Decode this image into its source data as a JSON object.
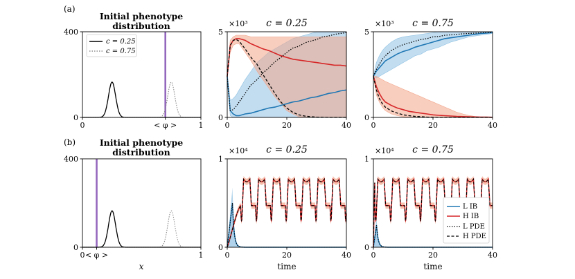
{
  "colors": {
    "L": "#1f77b4",
    "H": "#d62728",
    "L_band": "#8fc1e3",
    "H_band": "#f2a58a",
    "mean_line": "#9467bd"
  },
  "rows": [
    {
      "label": "(a)"
    },
    {
      "label": "(b)"
    }
  ],
  "chart_data": [
    {
      "id": "a1",
      "type": "line",
      "title_line1": "Initial phenotype",
      "title_line2": "distribution",
      "xlim": [
        0,
        1
      ],
      "ylim": [
        0,
        400
      ],
      "xticks": [
        {
          "v": 0,
          "t": "0"
        },
        {
          "v": 0.7,
          "t": "< φ >"
        },
        {
          "v": 1,
          "t": "1"
        }
      ],
      "yticks": [
        {
          "v": 0,
          "t": "0"
        },
        {
          "v": 400,
          "t": "400"
        }
      ],
      "mean_marker_x": 0.7,
      "series": [
        {
          "name": "c = 0.25",
          "style": "solid",
          "mu": 0.25,
          "sigma": 0.03,
          "peak": 165
        },
        {
          "name": "c = 0.75",
          "style": "dotted",
          "mu": 0.75,
          "sigma": 0.03,
          "peak": 165
        }
      ],
      "legend": [
        {
          "label": "c = 0.25",
          "style": "solid"
        },
        {
          "label": "c = 0.75",
          "style": "dotted"
        }
      ]
    },
    {
      "id": "a2",
      "type": "line",
      "title": "c = 0.25",
      "exponent": "×10³",
      "xlim": [
        0,
        40
      ],
      "ylim": [
        0,
        5
      ],
      "xticks": [
        {
          "v": 0,
          "t": "0"
        },
        {
          "v": 20,
          "t": "20"
        },
        {
          "v": 40,
          "t": "40"
        }
      ],
      "yticks": [
        {
          "v": 0,
          "t": "0"
        },
        {
          "v": 5,
          "t": "5"
        }
      ],
      "x": [
        0,
        1,
        2,
        3,
        4,
        6,
        8,
        10,
        12,
        14,
        16,
        18,
        20,
        22,
        24,
        26,
        28,
        30,
        32,
        34,
        36,
        38,
        40
      ],
      "series": [
        {
          "name": "L IB",
          "values": [
            2.4,
            0.4,
            0.2,
            0.1,
            0.1,
            0.2,
            0.25,
            0.35,
            0.45,
            0.55,
            0.6,
            0.7,
            0.8,
            0.9,
            0.95,
            1.05,
            1.15,
            1.2,
            1.3,
            1.4,
            1.45,
            1.55,
            1.6
          ],
          "band_lo": [
            2.4,
            0.1,
            0.0,
            0.0,
            0.0,
            0.0,
            0.0,
            0.0,
            0.0,
            0.0,
            0.0,
            0.0,
            0.0,
            0.0,
            0.0,
            0.0,
            0.0,
            0.0,
            0.0,
            0.0,
            0.0,
            0.0,
            0.0
          ],
          "band_hi": [
            2.4,
            1.0,
            1.1,
            1.3,
            1.6,
            2.2,
            2.7,
            3.2,
            3.5,
            3.8,
            4.0,
            4.2,
            4.4,
            4.6,
            4.7,
            4.8,
            4.9,
            5.0,
            5.0,
            5.0,
            5.0,
            5.0,
            5.0
          ]
        },
        {
          "name": "H IB",
          "values": [
            2.4,
            4.2,
            4.5,
            4.6,
            4.6,
            4.5,
            4.3,
            4.15,
            4.0,
            3.9,
            3.75,
            3.6,
            3.5,
            3.4,
            3.35,
            3.3,
            3.25,
            3.2,
            3.15,
            3.1,
            3.05,
            3.05,
            3.0
          ],
          "band_lo": [
            2.4,
            3.8,
            4.2,
            4.3,
            4.3,
            3.8,
            3.3,
            2.7,
            2.2,
            1.7,
            1.2,
            0.8,
            0.4,
            0.2,
            0.05,
            0.0,
            0.0,
            0.0,
            0.0,
            0.0,
            0.0,
            0.0,
            0.0
          ],
          "band_hi": [
            2.4,
            4.5,
            4.7,
            4.8,
            4.8,
            4.8,
            4.7,
            4.7,
            4.7,
            4.7,
            4.7,
            4.7,
            4.7,
            4.7,
            4.7,
            4.7,
            4.7,
            4.7,
            4.7,
            4.7,
            4.7,
            4.7,
            4.7
          ]
        },
        {
          "name": "L PDE",
          "values": [
            2.4,
            0.4,
            0.45,
            0.65,
            0.9,
            1.4,
            1.9,
            2.2,
            2.6,
            2.9,
            3.25,
            3.5,
            3.8,
            4.05,
            4.15,
            4.35,
            4.45,
            4.55,
            4.7,
            4.75,
            4.85,
            4.9,
            4.95
          ]
        },
        {
          "name": "H PDE",
          "values": [
            2.4,
            4.2,
            4.5,
            4.55,
            4.45,
            4.0,
            3.5,
            3.1,
            2.5,
            1.95,
            1.4,
            0.9,
            0.55,
            0.3,
            0.15,
            0.08,
            0.04,
            0.02,
            0.01,
            0.0,
            0.0,
            0.0,
            0.0
          ]
        }
      ]
    },
    {
      "id": "a3",
      "type": "line",
      "title": "c = 0.75",
      "exponent": "×10³",
      "xlim": [
        0,
        40
      ],
      "ylim": [
        0,
        5
      ],
      "xticks": [
        {
          "v": 0,
          "t": "0"
        },
        {
          "v": 20,
          "t": "20"
        },
        {
          "v": 40,
          "t": "40"
        }
      ],
      "yticks": [
        {
          "v": 0,
          "t": "0"
        },
        {
          "v": 5,
          "t": "5"
        }
      ],
      "x": [
        0,
        1,
        2,
        3,
        4,
        6,
        8,
        10,
        12,
        14,
        16,
        18,
        20,
        22,
        24,
        26,
        28,
        30,
        32,
        34,
        36,
        38,
        40
      ],
      "series": [
        {
          "name": "L IB",
          "values": [
            2.4,
            2.7,
            2.9,
            3.1,
            3.3,
            3.5,
            3.7,
            3.85,
            3.95,
            4.1,
            4.2,
            4.3,
            4.4,
            4.5,
            4.6,
            4.65,
            4.7,
            4.75,
            4.8,
            4.85,
            4.9,
            4.92,
            4.95
          ],
          "band_lo": [
            2.4,
            2.3,
            2.4,
            2.5,
            2.6,
            2.8,
            3.0,
            3.2,
            3.4,
            3.6,
            3.7,
            3.9,
            4.0,
            4.1,
            4.25,
            4.4,
            4.5,
            4.6,
            4.7,
            4.75,
            4.8,
            4.85,
            4.9
          ],
          "band_hi": [
            2.4,
            3.2,
            3.6,
            3.9,
            4.1,
            4.4,
            4.6,
            4.7,
            4.75,
            4.8,
            4.85,
            4.9,
            4.95,
            5.0,
            5.0,
            5.0,
            5.0,
            5.0,
            5.0,
            5.0,
            5.0,
            5.0,
            5.0
          ]
        },
        {
          "name": "H IB",
          "values": [
            2.4,
            1.8,
            1.4,
            1.1,
            0.9,
            0.7,
            0.55,
            0.45,
            0.35,
            0.3,
            0.25,
            0.2,
            0.15,
            0.12,
            0.1,
            0.08,
            0.06,
            0.05,
            0.04,
            0.03,
            0.02,
            0.02,
            0.01
          ],
          "band_lo": [
            2.4,
            1.3,
            0.9,
            0.6,
            0.4,
            0.2,
            0.1,
            0.05,
            0.0,
            0.0,
            0.0,
            0.0,
            0.0,
            0.0,
            0.0,
            0.0,
            0.0,
            0.0,
            0.0,
            0.0,
            0.0,
            0.0,
            0.0
          ],
          "band_hi": [
            2.4,
            2.4,
            2.3,
            2.2,
            2.1,
            1.95,
            1.8,
            1.65,
            1.5,
            1.35,
            1.2,
            1.05,
            0.9,
            0.75,
            0.6,
            0.45,
            0.3,
            0.2,
            0.12,
            0.06,
            0.03,
            0.02,
            0.01
          ]
        },
        {
          "name": "L PDE",
          "values": [
            2.4,
            2.8,
            3.1,
            3.4,
            3.6,
            3.9,
            4.1,
            4.25,
            4.35,
            4.45,
            4.55,
            4.6,
            4.7,
            4.72,
            4.8,
            4.82,
            4.85,
            4.88,
            4.9,
            4.92,
            4.94,
            4.95,
            4.96
          ]
        },
        {
          "name": "H PDE",
          "values": [
            2.4,
            1.6,
            1.1,
            0.8,
            0.6,
            0.38,
            0.25,
            0.15,
            0.1,
            0.06,
            0.04,
            0.02,
            0.01,
            0.0,
            0.0,
            0.0,
            0.0,
            0.0,
            0.0,
            0.0,
            0.0,
            0.0,
            0.0
          ]
        }
      ]
    },
    {
      "id": "b1",
      "type": "line",
      "title_line1": "Initial phenotype",
      "title_line2": "distribution",
      "xlim": [
        0,
        1
      ],
      "ylim": [
        0,
        400
      ],
      "xticks": [
        {
          "v": 0,
          "t": "0"
        },
        {
          "v": 0.12,
          "t": "< φ >"
        },
        {
          "v": 1,
          "t": "1"
        }
      ],
      "yticks": [
        {
          "v": 0,
          "t": "0"
        },
        {
          "v": 400,
          "t": "400"
        }
      ],
      "xlabel": "x",
      "mean_marker_x": 0.12,
      "series": [
        {
          "name": "c = 0.25",
          "style": "solid",
          "mu": 0.25,
          "sigma": 0.03,
          "peak": 165
        },
        {
          "name": "c = 0.75",
          "style": "dotted",
          "mu": 0.75,
          "sigma": 0.03,
          "peak": 165
        }
      ]
    },
    {
      "id": "b2",
      "type": "line",
      "title": "c = 0.25",
      "exponent": "×10⁴",
      "xlabel": "time",
      "xlim": [
        0,
        40
      ],
      "ylim": [
        0,
        1
      ],
      "xticks": [
        {
          "v": 0,
          "t": "0"
        },
        {
          "v": 20,
          "t": "20"
        },
        {
          "v": 40,
          "t": "40"
        }
      ],
      "yticks": [
        {
          "v": 0,
          "t": "0"
        },
        {
          "v": 1,
          "t": "1"
        }
      ],
      "oscillation": {
        "baseline": 0.47,
        "peak": 0.77,
        "trough": 0.3,
        "period": 5,
        "start": 4.5,
        "cycles": 8
      },
      "initial": {
        "H_rise_peak": 0.47,
        "L_peak": 0.5,
        "L_decay_by": 5
      }
    },
    {
      "id": "b3",
      "type": "line",
      "title": "c = 0.75",
      "exponent": "×10⁴",
      "xlabel": "time",
      "xlim": [
        0,
        40
      ],
      "ylim": [
        0,
        1
      ],
      "xticks": [
        {
          "v": 0,
          "t": "0"
        },
        {
          "v": 20,
          "t": "20"
        },
        {
          "v": 40,
          "t": "40"
        }
      ],
      "yticks": [
        {
          "v": 0,
          "t": "0"
        },
        {
          "v": 1,
          "t": "1"
        }
      ],
      "oscillation": {
        "baseline": 0.47,
        "peak": 0.77,
        "trough": 0.3,
        "period": 5,
        "start": 0.5,
        "cycles": 8
      },
      "initial": {
        "H_rise_peak": 0.77,
        "L_peak": 0.25,
        "L_decay_by": 3
      },
      "legend": [
        {
          "label": "L IB",
          "style": "solid-blue"
        },
        {
          "label": "H IB",
          "style": "solid-red"
        },
        {
          "label": "L PDE",
          "style": "dotted"
        },
        {
          "label": "H PDE",
          "style": "dashed"
        }
      ]
    }
  ]
}
